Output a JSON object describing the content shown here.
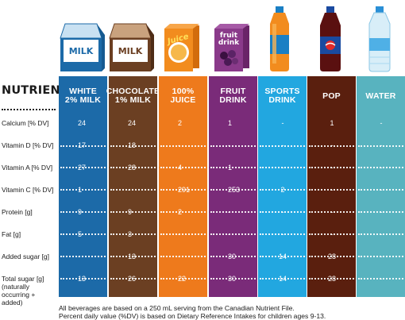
{
  "chart_data": {
    "type": "table",
    "header_label": "NUTRIENT",
    "columns": [
      {
        "key": "white_milk",
        "label": "WHITE\n2% MILK",
        "color": "#1c6aa8",
        "icon": "milk-carton-icon",
        "icon_text": "MILK"
      },
      {
        "key": "chocolate_milk",
        "label": "CHOCOLATE\n1% MILK",
        "color": "#6b3f22",
        "icon": "chocolate-milk-carton-icon",
        "icon_text": "MILK"
      },
      {
        "key": "juice",
        "label": "100%\nJUICE",
        "color": "#ee7a1c",
        "icon": "juice-box-icon",
        "icon_text": "Juice"
      },
      {
        "key": "fruit_drink",
        "label": "FRUIT\nDRINK",
        "color": "#7a2b79",
        "icon": "fruit-drink-box-icon",
        "icon_text": "fruit drink"
      },
      {
        "key": "sports_drink",
        "label": "SPORTS\nDRINK",
        "color": "#22a7e0",
        "icon": "sports-drink-bottle-icon"
      },
      {
        "key": "pop",
        "label": "POP",
        "color": "#5a1f0e",
        "icon": "pop-bottle-icon"
      },
      {
        "key": "water",
        "label": "WATER",
        "color": "#58b3bf",
        "icon": "water-bottle-icon"
      }
    ],
    "rows": [
      {
        "label": "Calcium [% DV]",
        "values": [
          "24",
          "24",
          "2",
          "1",
          "-",
          "1",
          "-"
        ]
      },
      {
        "label": "Vitamin D [% DV]",
        "values": [
          "17",
          "18",
          "-",
          "-",
          "-",
          "-",
          "-"
        ]
      },
      {
        "label": "Vitamin A [% DV]",
        "values": [
          "27",
          "28",
          "4",
          "1",
          "-",
          "-",
          "-"
        ]
      },
      {
        "label": "Vitamin C [% DV]",
        "values": [
          "1",
          "-",
          "291",
          "253",
          "2",
          "-",
          "-"
        ]
      },
      {
        "label": "Protein [g]",
        "values": [
          "9",
          "9",
          "2",
          "-",
          "-",
          "-",
          "-"
        ]
      },
      {
        "label": "Fat [g]",
        "values": [
          "5",
          "3",
          "-",
          "-",
          "-",
          "-",
          "-"
        ]
      },
      {
        "label": "Added sugar [g]",
        "values": [
          "-",
          "13",
          "-",
          "30",
          "14",
          "28",
          "-"
        ]
      },
      {
        "label": "Total sugar [g]\n(naturally\noccurring +\nadded)",
        "values": [
          "13",
          "26",
          "22",
          "30",
          "14",
          "28",
          "-"
        ]
      }
    ],
    "footnote": [
      "All beverages are based on a 250 mL serving from the Canadian Nutrient File.",
      "Percent daily value (%DV) is based on Dietary Reference Intakes for children ages 9-13."
    ]
  }
}
